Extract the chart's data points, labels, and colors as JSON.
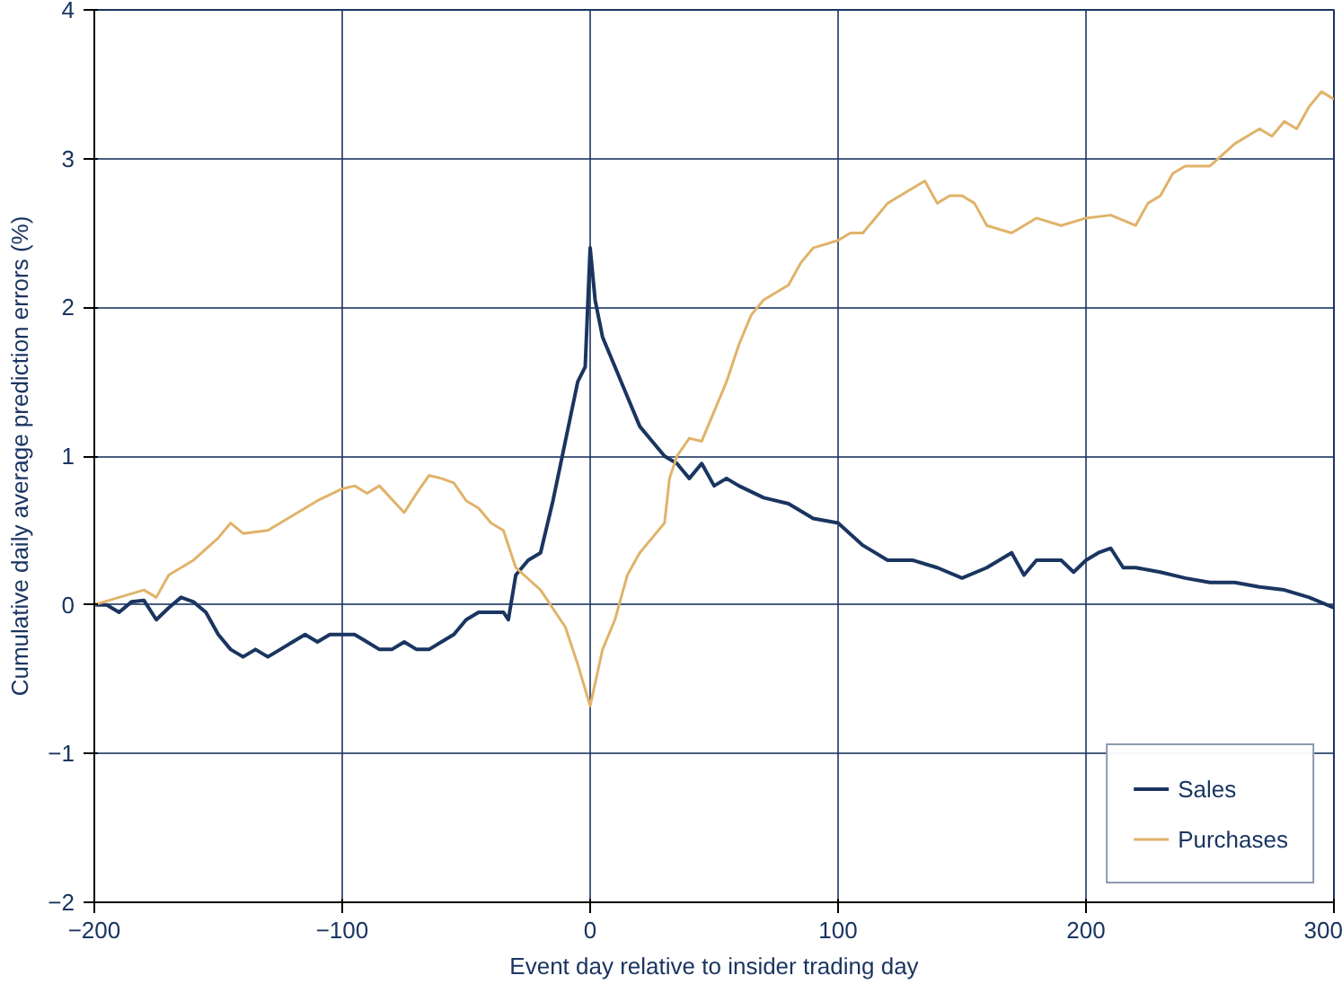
{
  "chart_data": {
    "type": "line",
    "xlabel": "Event day relative to insider trading day",
    "ylabel": "Cumulative daily average prediction errors (%)",
    "xlim": [
      -200,
      300
    ],
    "ylim": [
      -2,
      4
    ],
    "xticks": [
      -200,
      -100,
      0,
      100,
      200,
      300
    ],
    "yticks": [
      -2,
      -1,
      0,
      1,
      2,
      3,
      4
    ],
    "grid": true,
    "legend": "bottom right",
    "line_style": "solid",
    "series": [
      {
        "name": "Sales",
        "color": "#1a3560",
        "x": [
          -200,
          -195,
          -190,
          -185,
          -180,
          -175,
          -170,
          -165,
          -160,
          -155,
          -150,
          -145,
          -140,
          -135,
          -130,
          -125,
          -120,
          -115,
          -110,
          -105,
          -100,
          -95,
          -90,
          -85,
          -80,
          -75,
          -70,
          -65,
          -60,
          -55,
          -50,
          -45,
          -40,
          -35,
          -33,
          -30,
          -25,
          -20,
          -15,
          -10,
          -5,
          -2,
          0,
          2,
          5,
          10,
          15,
          20,
          25,
          30,
          35,
          40,
          45,
          50,
          55,
          60,
          70,
          80,
          90,
          100,
          110,
          120,
          130,
          140,
          150,
          160,
          170,
          175,
          180,
          190,
          195,
          200,
          205,
          210,
          215,
          220,
          230,
          240,
          250,
          260,
          270,
          280,
          290,
          300
        ],
        "values": [
          0,
          0,
          -0.05,
          0.02,
          0.03,
          -0.1,
          -0.02,
          0.05,
          0.02,
          -0.05,
          -0.2,
          -0.3,
          -0.35,
          -0.3,
          -0.35,
          -0.3,
          -0.25,
          -0.2,
          -0.25,
          -0.2,
          -0.2,
          -0.2,
          -0.25,
          -0.3,
          -0.3,
          -0.25,
          -0.3,
          -0.3,
          -0.25,
          -0.2,
          -0.1,
          -0.05,
          -0.05,
          -0.05,
          -0.1,
          0.2,
          0.3,
          0.35,
          0.7,
          1.1,
          1.5,
          1.6,
          2.4,
          2.05,
          1.8,
          1.6,
          1.4,
          1.2,
          1.1,
          1.0,
          0.95,
          0.85,
          0.95,
          0.8,
          0.85,
          0.8,
          0.72,
          0.68,
          0.58,
          0.55,
          0.4,
          0.3,
          0.3,
          0.25,
          0.18,
          0.25,
          0.35,
          0.2,
          0.3,
          0.3,
          0.22,
          0.3,
          0.35,
          0.38,
          0.25,
          0.25,
          0.22,
          0.18,
          0.15,
          0.15,
          0.12,
          0.1,
          0.05,
          -0.02
        ]
      },
      {
        "name": "Purchases",
        "color": "#e0b36a",
        "x": [
          -200,
          -190,
          -180,
          -175,
          -170,
          -160,
          -150,
          -145,
          -140,
          -130,
          -120,
          -110,
          -100,
          -95,
          -90,
          -85,
          -75,
          -70,
          -65,
          -60,
          -55,
          -50,
          -45,
          -40,
          -35,
          -30,
          -20,
          -10,
          -5,
          0,
          5,
          10,
          15,
          20,
          25,
          30,
          32,
          35,
          40,
          45,
          50,
          55,
          60,
          65,
          70,
          75,
          80,
          85,
          90,
          100,
          105,
          110,
          115,
          120,
          125,
          130,
          135,
          140,
          145,
          150,
          155,
          160,
          170,
          180,
          190,
          200,
          210,
          220,
          225,
          230,
          235,
          240,
          250,
          260,
          270,
          275,
          280,
          285,
          290,
          295,
          300
        ],
        "values": [
          0,
          0.05,
          0.1,
          0.05,
          0.2,
          0.3,
          0.45,
          0.55,
          0.48,
          0.5,
          0.6,
          0.7,
          0.78,
          0.8,
          0.75,
          0.8,
          0.62,
          0.75,
          0.87,
          0.85,
          0.82,
          0.7,
          0.65,
          0.55,
          0.5,
          0.25,
          0.1,
          -0.15,
          -0.4,
          -0.68,
          -0.3,
          -0.1,
          0.2,
          0.35,
          0.45,
          0.55,
          0.85,
          1.0,
          1.12,
          1.1,
          1.3,
          1.5,
          1.75,
          1.95,
          2.05,
          2.1,
          2.15,
          2.3,
          2.4,
          2.45,
          2.5,
          2.5,
          2.6,
          2.7,
          2.75,
          2.8,
          2.85,
          2.7,
          2.75,
          2.75,
          2.7,
          2.55,
          2.5,
          2.6,
          2.55,
          2.6,
          2.62,
          2.55,
          2.7,
          2.75,
          2.9,
          2.95,
          2.95,
          3.1,
          3.2,
          3.15,
          3.25,
          3.2,
          3.35,
          3.45,
          3.4
        ]
      }
    ]
  }
}
